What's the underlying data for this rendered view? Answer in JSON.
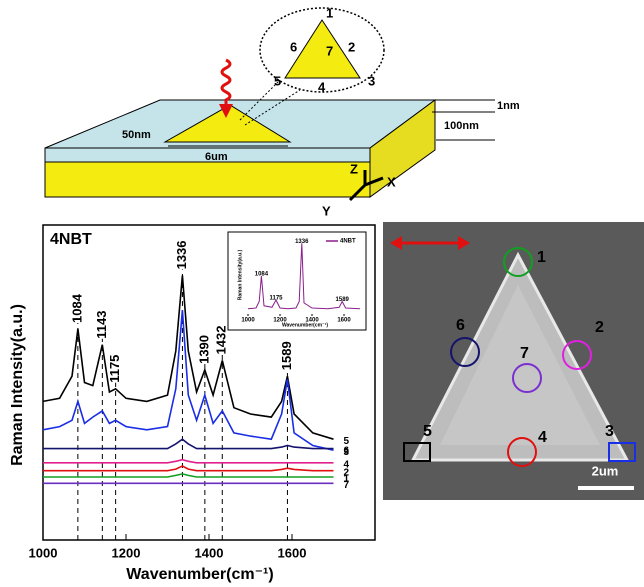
{
  "schematic": {
    "thickness_top": "1nm",
    "thickness_film": "100nm",
    "height_triangle": "50nm",
    "width_triangle": "6um",
    "axis_z": "Z",
    "axis_x": "X",
    "axis_y": "Y",
    "points": [
      "1",
      "2",
      "3",
      "4",
      "5",
      "6",
      "7"
    ]
  },
  "chart_data": [
    {
      "type": "line",
      "title": "4NBT",
      "xlabel": "Wavenumber(cm⁻¹)",
      "ylabel": "Raman Intensity(a.u.)",
      "xlim": [
        1000,
        1800
      ],
      "xticks": [
        1000,
        1200,
        1400,
        1600
      ],
      "ylim": [
        0,
        100
      ],
      "peaks": [
        1084,
        1143,
        1175,
        1336,
        1390,
        1432,
        1589
      ],
      "x": [
        1000,
        1040,
        1070,
        1084,
        1100,
        1120,
        1143,
        1160,
        1175,
        1200,
        1250,
        1300,
        1320,
        1336,
        1350,
        1370,
        1390,
        1410,
        1432,
        1460,
        1500,
        1550,
        1575,
        1589,
        1605,
        1650,
        1700
      ],
      "series": [
        {
          "name": "5",
          "color": "#000000",
          "values": [
            44,
            45,
            52,
            67,
            50,
            49,
            62,
            47,
            48,
            45,
            44,
            46,
            60,
            84,
            60,
            47,
            54,
            46,
            57,
            42,
            40,
            39,
            44,
            52,
            40,
            34,
            32
          ]
        },
        {
          "name": "3",
          "color": "#1a2ee6",
          "values": [
            35,
            36,
            38,
            44,
            37,
            39,
            41,
            37,
            38,
            36,
            35,
            36,
            48,
            73,
            46,
            38,
            46,
            37,
            41,
            34,
            33,
            32,
            40,
            51,
            34,
            30,
            28.5
          ]
        },
        {
          "name": "6",
          "color": "#14146e",
          "values": [
            29,
            29,
            29,
            29,
            29,
            29,
            29,
            29,
            29,
            29,
            29,
            29,
            30.5,
            32,
            30.5,
            29,
            29,
            29,
            29,
            29,
            29,
            29,
            29.5,
            30,
            29.5,
            29,
            29
          ]
        },
        {
          "name": "4",
          "color": "#e0208c",
          "values": [
            24.5,
            24.5,
            24.5,
            24.5,
            24.5,
            24.5,
            24.5,
            24.5,
            24.5,
            24.5,
            24.5,
            24.5,
            25,
            25.5,
            25,
            24.5,
            24.5,
            24.5,
            24.5,
            24.5,
            24.5,
            24.5,
            24.5,
            24.5,
            24.5,
            24.5,
            24.5
          ]
        },
        {
          "name": "2",
          "color": "#e01010",
          "values": [
            22,
            22,
            22,
            22,
            22,
            22,
            22,
            22,
            22,
            22,
            22,
            22,
            22.5,
            23.5,
            22.5,
            22,
            22,
            22,
            22,
            22,
            22,
            22,
            22.4,
            22.8,
            22.4,
            22,
            22
          ]
        },
        {
          "name": "1",
          "color": "#10a020",
          "values": [
            20,
            20,
            20,
            20,
            20,
            20,
            20,
            20,
            20,
            20,
            20,
            20,
            20.5,
            21,
            20.5,
            20,
            20,
            20,
            20,
            20,
            20,
            20,
            20,
            20,
            20,
            20,
            20
          ]
        },
        {
          "name": "7",
          "color": "#6a2fc0",
          "values": [
            18,
            18,
            18,
            18,
            18,
            18,
            18,
            18,
            18,
            18,
            18,
            18,
            18,
            18,
            18,
            18,
            18,
            18,
            18,
            18,
            18,
            18,
            18,
            18,
            18,
            18,
            18
          ]
        }
      ]
    },
    {
      "type": "line",
      "xlabel": "Wavenumber(cm⁻¹)",
      "ylabel": "Raman Intensity(a.u.)",
      "xlim": [
        1000,
        1700
      ],
      "xticks": [
        1000,
        1200,
        1400,
        1600
      ],
      "ylim": [
        0,
        110
      ],
      "peaks": [
        1084,
        1175,
        1336,
        1589
      ],
      "x": [
        1000,
        1050,
        1070,
        1084,
        1100,
        1150,
        1175,
        1200,
        1250,
        1300,
        1320,
        1336,
        1350,
        1400,
        1500,
        1570,
        1589,
        1610,
        1700
      ],
      "series": [
        {
          "name": "4NBT",
          "color": "#8a1f8a",
          "values": [
            10,
            11,
            20,
            55,
            14,
            12,
            22,
            11,
            10,
            11,
            20,
            100,
            18,
            11,
            10,
            12,
            20,
            11,
            10
          ]
        }
      ]
    }
  ],
  "sem_image": {
    "points": [
      "1",
      "2",
      "3",
      "4",
      "5",
      "6",
      "7"
    ],
    "scale_bar": "2um"
  }
}
